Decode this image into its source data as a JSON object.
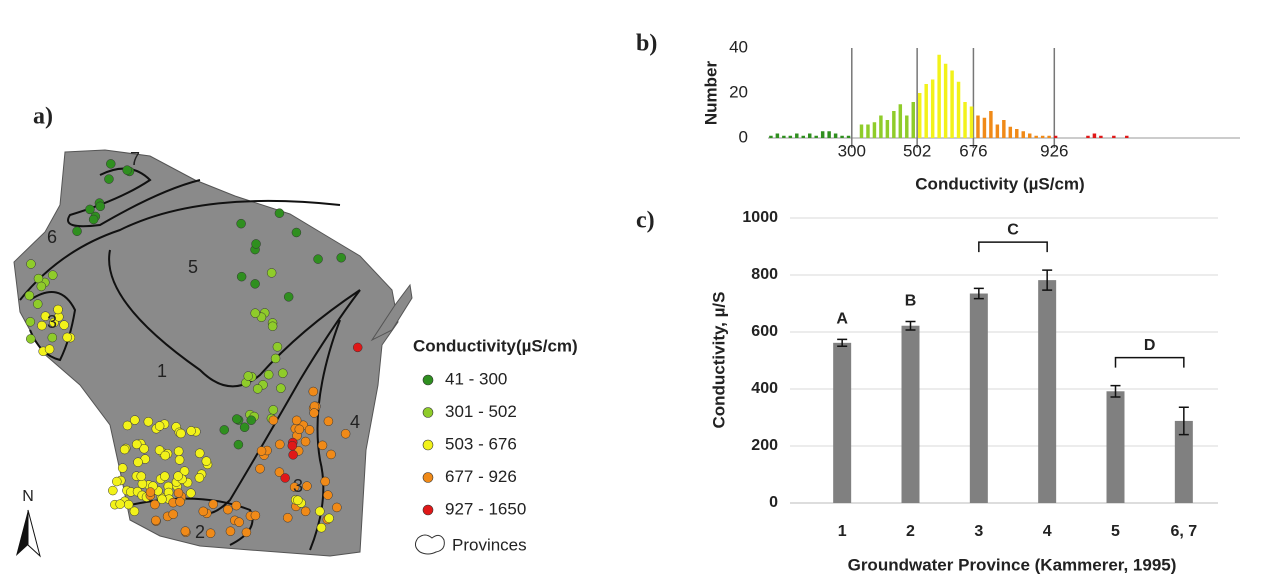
{
  "map": {
    "label": "a)",
    "north": "N",
    "province_labels": [
      "7",
      "6",
      "5",
      "3",
      "1",
      "4",
      "3",
      "2"
    ],
    "legend_title": "Conductivity(µS/cm)",
    "legend": [
      {
        "label": "41 - 300",
        "color": "#2f8f1f"
      },
      {
        "label": "301 - 502",
        "color": "#8fcc2a"
      },
      {
        "label": "503 - 676",
        "color": "#f2f21a"
      },
      {
        "label": "677 - 926",
        "color": "#f08a18"
      },
      {
        "label": "927 - 1650",
        "color": "#e01818"
      }
    ],
    "provinces_label": "Provinces"
  },
  "chart_data": [
    {
      "type": "histogram",
      "label": "b)",
      "y_label": "Number",
      "x_label": "Conductivity (µS/cm)",
      "bins": [
        40,
        60,
        80,
        100,
        120,
        140,
        160,
        180,
        200,
        220,
        240,
        260,
        280,
        300,
        320,
        340,
        360,
        380,
        400,
        420,
        440,
        460,
        480,
        500,
        520,
        540,
        560,
        580,
        600,
        620,
        640,
        660,
        680,
        700,
        720,
        740,
        760,
        780,
        800,
        820,
        840,
        860,
        880,
        900,
        920,
        940,
        960,
        980,
        1000,
        1020,
        1040,
        1060,
        1080,
        1100,
        1120,
        1140,
        1160
      ],
      "counts": [
        1,
        2,
        1,
        1,
        2,
        1,
        2,
        1,
        3,
        3,
        2,
        1,
        1,
        0,
        6,
        6,
        7,
        10,
        8,
        12,
        15,
        10,
        16,
        20,
        24,
        26,
        37,
        33,
        30,
        25,
        16,
        14,
        10,
        9,
        12,
        6,
        8,
        5,
        4,
        3,
        2,
        1,
        1,
        1,
        1,
        0,
        0,
        0,
        0,
        1,
        2,
        1,
        0,
        1,
        0,
        1
      ],
      "class_colors": [
        "#2f8f1f",
        "#8fcc2a",
        "#f2f21a",
        "#f08a18",
        "#e01818"
      ],
      "xlim": [
        41,
        1500
      ],
      "xticks": [
        300,
        502,
        676,
        926
      ],
      "ylim": [
        0,
        40
      ],
      "yticks": [
        0,
        20,
        40
      ]
    },
    {
      "type": "bar",
      "label": "c)",
      "y_label": "Conductivity, µ/S",
      "x_label": "Groundwater Province (Kammerer, 1995)",
      "categories": [
        "1",
        "2",
        "3",
        "4",
        "5",
        "6, 7"
      ],
      "values": [
        562,
        622,
        735,
        782,
        392,
        288
      ],
      "errors": [
        12,
        15,
        18,
        35,
        20,
        48
      ],
      "color": "#808080",
      "ylim": [
        0,
        1000
      ],
      "yticks": [
        0,
        200,
        400,
        600,
        800,
        1000
      ],
      "annotations": [
        {
          "text": "A",
          "over": [
            "1"
          ]
        },
        {
          "text": "B",
          "over": [
            "2"
          ]
        },
        {
          "text": "C",
          "over": [
            "3",
            "4"
          ]
        },
        {
          "text": "D",
          "over": [
            "5",
            "6, 7"
          ]
        }
      ]
    }
  ]
}
